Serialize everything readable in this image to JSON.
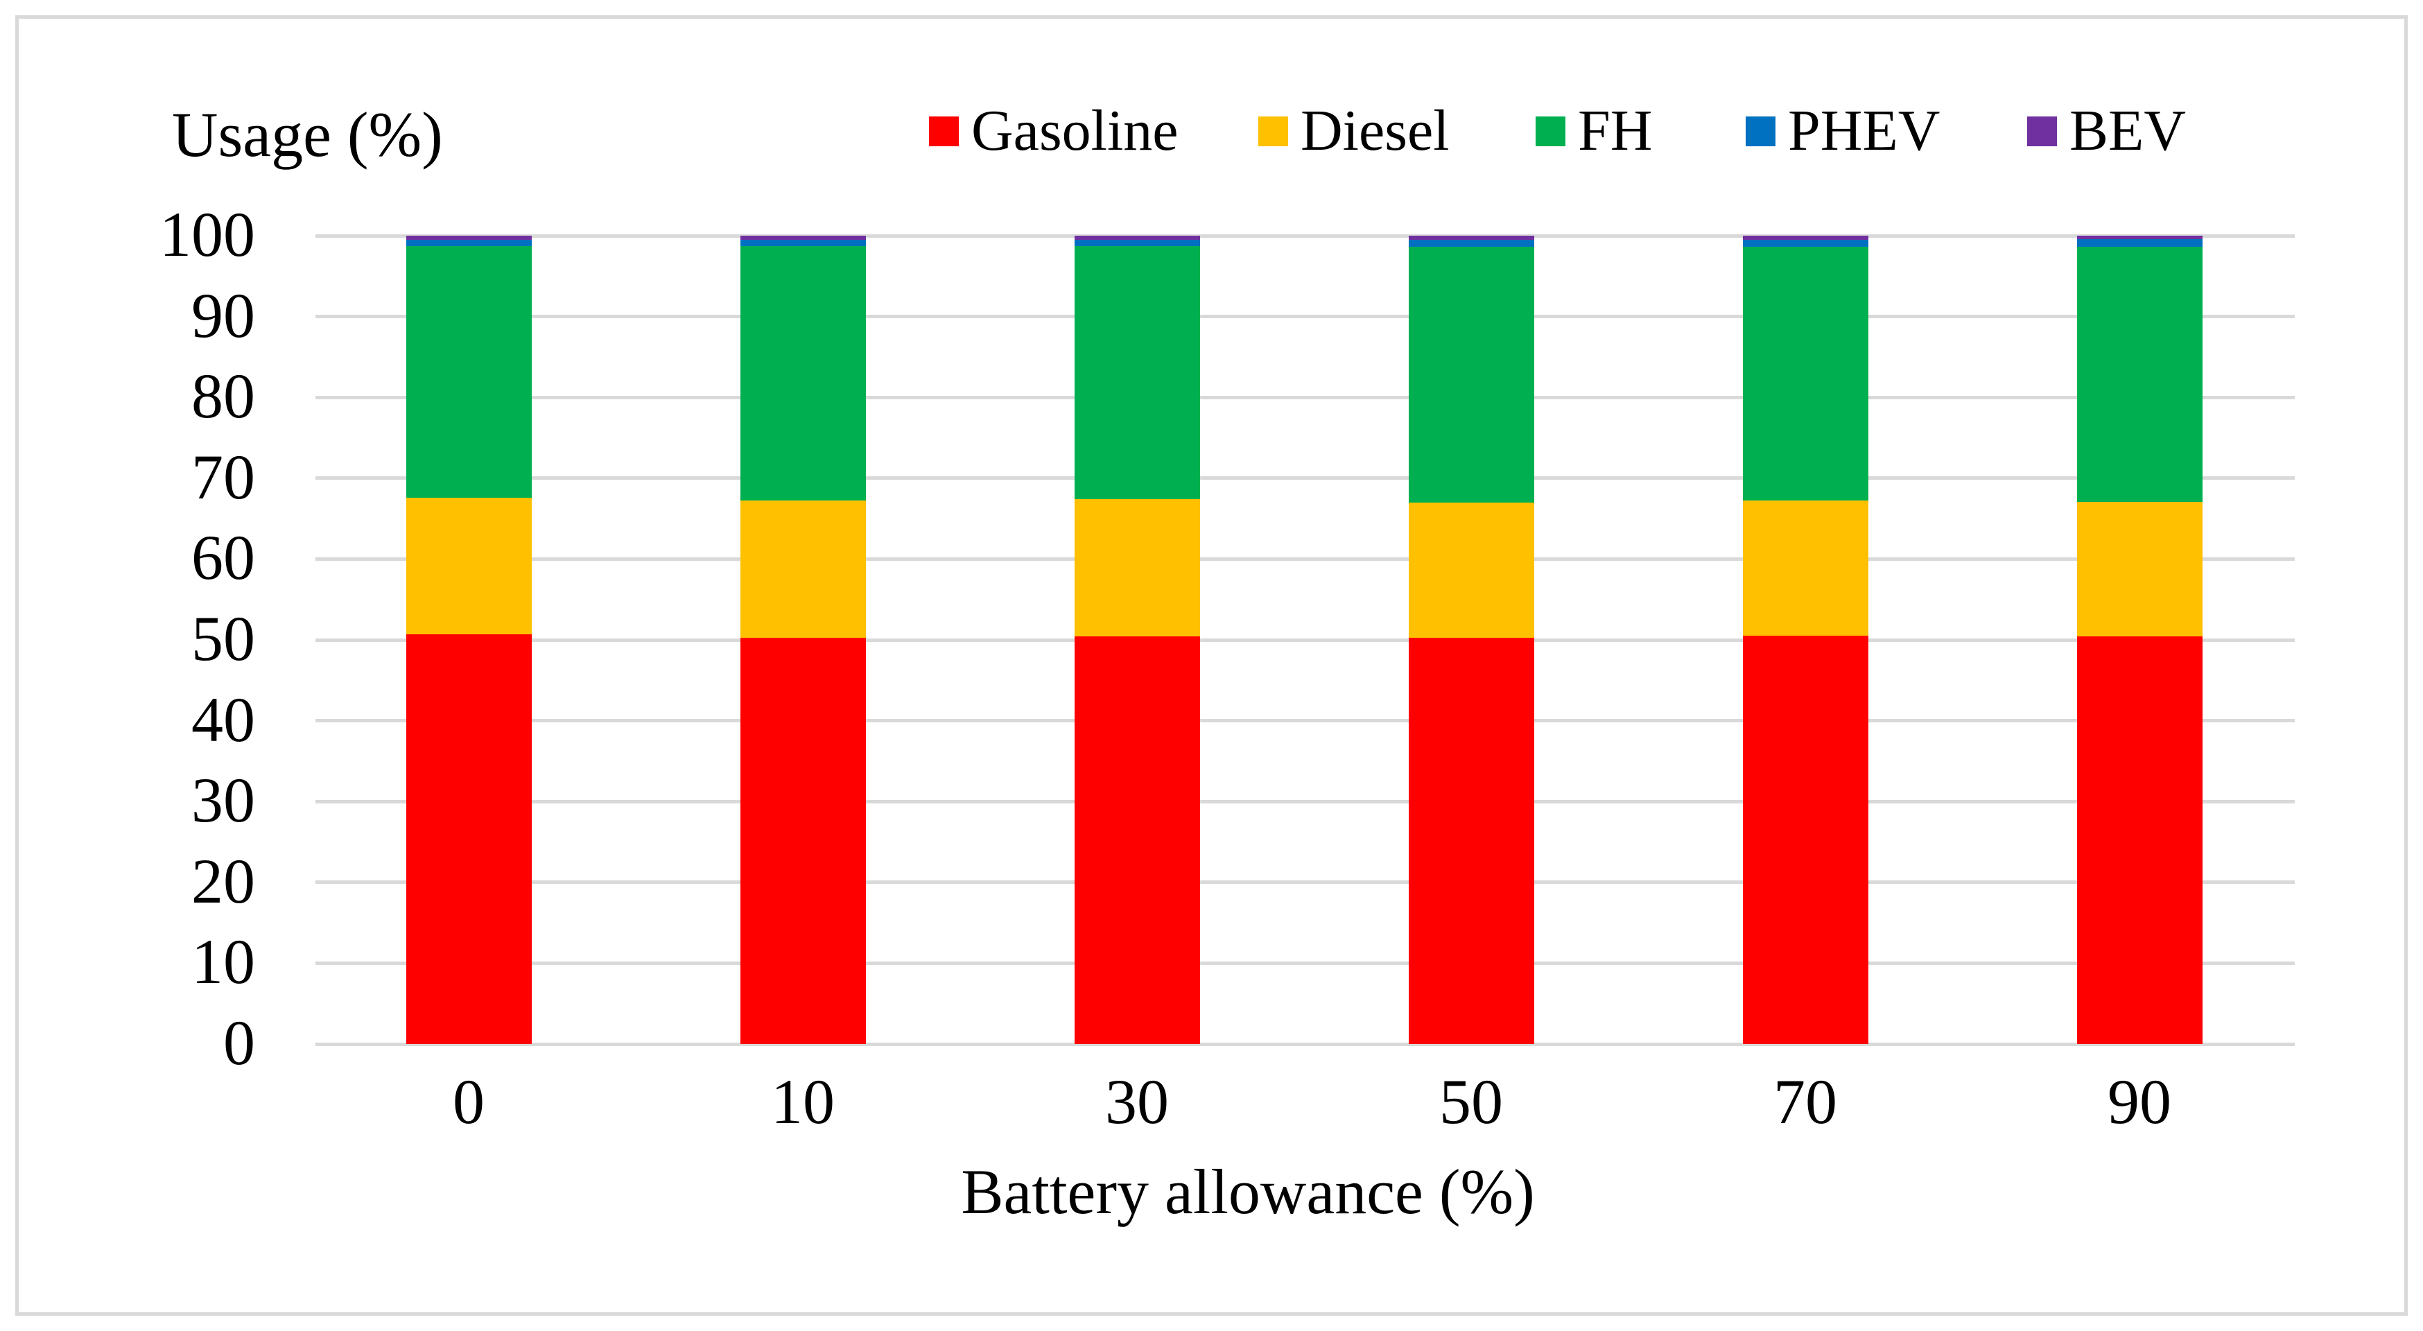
{
  "chart_data": {
    "type": "bar",
    "stacked": true,
    "ylabel": "Usage (%)",
    "xlabel": "Battery allowance (%)",
    "categories": [
      "0",
      "10",
      "30",
      "50",
      "70",
      "90"
    ],
    "series": [
      {
        "name": "Gasoline",
        "color": "#FF0000",
        "values": [
          50.7,
          50.3,
          50.4,
          50.3,
          50.5,
          50.4
        ]
      },
      {
        "name": "Diesel",
        "color": "#FFC000",
        "values": [
          16.9,
          16.9,
          17.0,
          16.7,
          16.7,
          16.7
        ]
      },
      {
        "name": "FH",
        "color": "#00B050",
        "values": [
          31.1,
          31.5,
          31.3,
          31.6,
          31.4,
          31.5
        ]
      },
      {
        "name": "PHEV",
        "color": "#0070C0",
        "values": [
          0.8,
          0.8,
          0.8,
          0.9,
          0.9,
          1.0
        ]
      },
      {
        "name": "BEV",
        "color": "#7030A0",
        "values": [
          0.5,
          0.5,
          0.5,
          0.5,
          0.5,
          0.4
        ]
      }
    ],
    "ylim": [
      0,
      100
    ],
    "yticks": [
      0,
      10,
      20,
      30,
      40,
      50,
      60,
      70,
      80,
      90,
      100
    ],
    "grid": true,
    "gridline_color": "#D9D9D9",
    "legend_position": "top",
    "legend_labels": [
      "Gasoline",
      "Diesel",
      "FH",
      "PHEV",
      "BEV"
    ]
  }
}
